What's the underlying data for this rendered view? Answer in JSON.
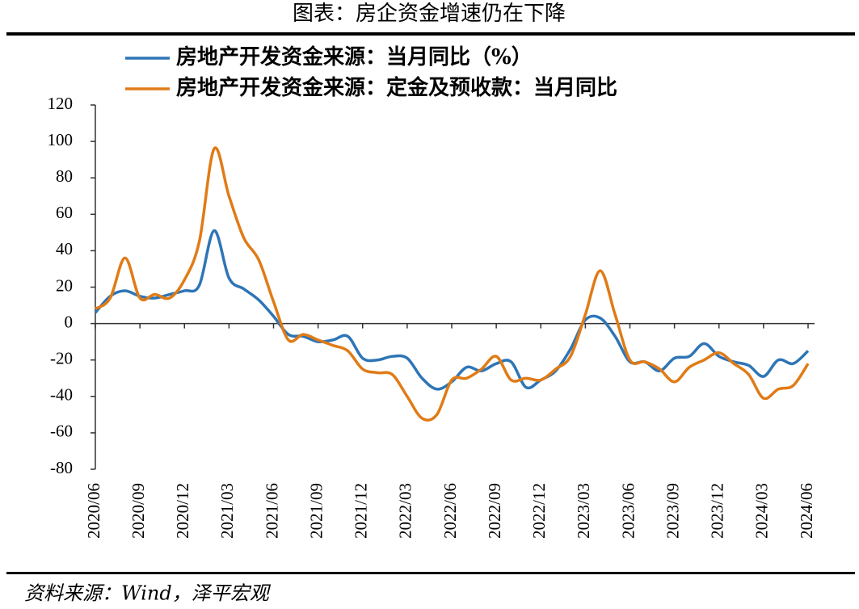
{
  "chart_data": {
    "type": "line",
    "title": "图表：房企资金增速仍在下降",
    "source": "资料来源：Wind，泽平宏观",
    "categories": [
      "2020/06",
      null,
      null,
      "2020/09",
      null,
      null,
      "2020/12",
      null,
      null,
      "2021/03",
      null,
      null,
      "2021/06",
      null,
      null,
      "2021/09",
      null,
      null,
      "2021/12",
      null,
      null,
      "2022/03",
      null,
      null,
      "2022/06",
      null,
      null,
      "2022/09",
      null,
      null,
      "2022/12",
      null,
      null,
      "2023/03",
      null,
      null,
      "2023/06",
      null,
      null,
      "2023/09",
      null,
      null,
      "2023/12",
      null,
      null,
      "2024/03",
      null,
      null,
      "2024/06"
    ],
    "series": [
      {
        "name": "房地产开发资金来源：当月同比（%）",
        "color": "#2e75b6",
        "values": [
          6,
          15,
          18,
          15,
          14,
          16,
          18,
          21,
          51,
          25,
          19,
          13,
          4,
          -6,
          -7,
          -10,
          -9,
          -7,
          -19,
          -20,
          -18,
          -19,
          -30,
          -36,
          -32,
          -24,
          -26,
          -22,
          -21,
          -35,
          -31,
          -26,
          -14,
          2,
          3,
          -7,
          -21,
          -21,
          -26,
          -19,
          -18,
          -11,
          -18,
          -21,
          -23,
          -29,
          -20,
          -22,
          -15
        ]
      },
      {
        "name": "房地产开发资金来源：定金及预收款：当月同比",
        "color": "#e07b16",
        "values": [
          8,
          14,
          36,
          14,
          16,
          14,
          24,
          45,
          96,
          70,
          47,
          35,
          12,
          -9,
          -6,
          -9,
          -12,
          -15,
          -25,
          -27,
          -28,
          -40,
          -52,
          -50,
          -31,
          -30,
          -25,
          -18,
          -31,
          -30,
          -31,
          -25,
          -18,
          5,
          29,
          5,
          -20,
          -21,
          -25,
          -32,
          -24,
          -20,
          -16,
          -22,
          -28,
          -41,
          -36,
          -34,
          -22
        ]
      }
    ],
    "ylim": [
      -80,
      120
    ],
    "yticks": [
      -80,
      -60,
      -40,
      -20,
      0,
      20,
      40,
      60,
      80,
      100,
      120
    ]
  }
}
